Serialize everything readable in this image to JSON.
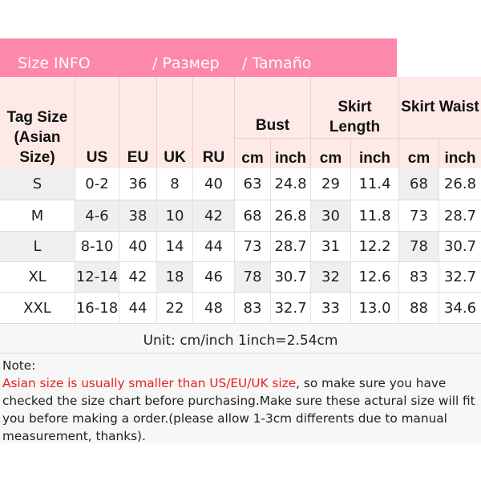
{
  "banner": {
    "title": "Size INFO",
    "ru": "/  Размер",
    "es": "/  Tamaño"
  },
  "headers": {
    "tag": "Tag Size (Asian Size)",
    "us": "US",
    "eu": "EU",
    "uk": "UK",
    "ru": "RU",
    "bust": "Bust",
    "skirt_length": "Skirt Length",
    "skirt_waist": "Skirt Waist",
    "cm": "cm",
    "inch": "inch"
  },
  "rows": [
    [
      "S",
      "0-2",
      "36",
      "8",
      "40",
      "63",
      "24.8",
      "29",
      "11.4",
      "68",
      "26.8"
    ],
    [
      "M",
      "4-6",
      "38",
      "10",
      "42",
      "68",
      "26.8",
      "30",
      "11.8",
      "73",
      "28.7"
    ],
    [
      "L",
      "8-10",
      "40",
      "14",
      "44",
      "73",
      "28.7",
      "31",
      "12.2",
      "78",
      "30.7"
    ],
    [
      "XL",
      "12-14",
      "42",
      "18",
      "46",
      "78",
      "30.7",
      "32",
      "12.6",
      "83",
      "32.7"
    ],
    [
      "XXL",
      "16-18",
      "44",
      "22",
      "48",
      "83",
      "32.7",
      "33",
      "13.0",
      "88",
      "34.6"
    ]
  ],
  "unit": "Unit: cm/inch   1inch=2.54cm",
  "note": {
    "label": "Note:",
    "highlight": "Asian size is usually smaller than US/EU/UK size",
    "text": ", so make sure you have checked the size chart before purchasing.Make sure these actural size will fit you before making a order.(please allow 1-3cm differents due to manual measurement, thanks)."
  },
  "colors": {
    "banner": "#fe88ab",
    "header_bg": "#fde9e6",
    "highlight": "#e8201e"
  }
}
